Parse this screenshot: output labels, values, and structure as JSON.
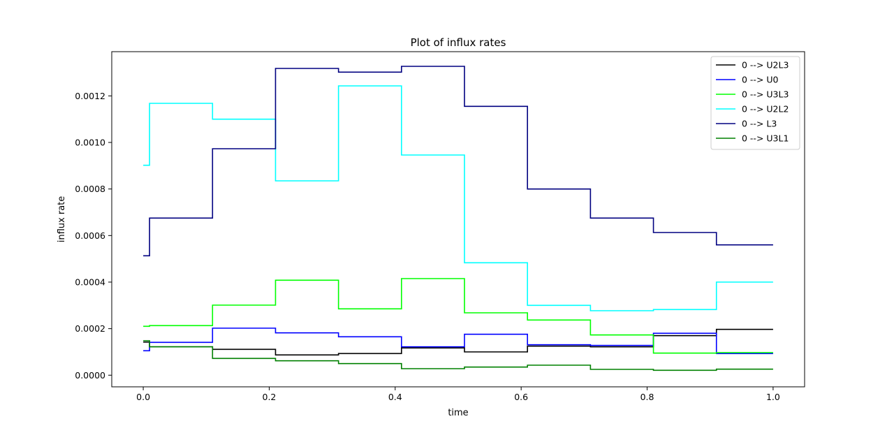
{
  "chart_data": {
    "type": "line",
    "step": "post",
    "title": "Plot of influx rates",
    "xlabel": "time",
    "ylabel": "influx rate",
    "xlim": [
      -0.05,
      1.05
    ],
    "ylim": [
      -5e-05,
      0.00139
    ],
    "xticks": [
      0.0,
      0.2,
      0.4,
      0.6,
      0.8,
      1.0
    ],
    "xtick_labels": [
      "0.0",
      "0.2",
      "0.4",
      "0.6",
      "0.8",
      "1.0"
    ],
    "yticks": [
      0.0,
      0.0002,
      0.0004,
      0.0006,
      0.0008,
      0.001,
      0.0012
    ],
    "ytick_labels": [
      "0.0000",
      "0.0002",
      "0.0004",
      "0.0006",
      "0.0008",
      "0.0010",
      "0.0012"
    ],
    "grid": false,
    "legend_position": "top-right",
    "x": [
      0.0,
      0.01,
      0.11,
      0.21,
      0.31,
      0.41,
      0.51,
      0.61,
      0.71,
      0.81,
      0.91,
      1.0
    ],
    "series": [
      {
        "name": "0 --> U2L3",
        "color": "#000000",
        "values": [
          0.000142,
          0.000122,
          0.000111,
          8.7e-05,
          9.3e-05,
          0.000117,
          0.0001,
          0.000125,
          0.000122,
          0.00017,
          0.000197,
          0.000197
        ]
      },
      {
        "name": "0 --> U0",
        "color": "#0000ff",
        "values": [
          0.000105,
          0.000141,
          0.000202,
          0.000182,
          0.000165,
          0.000122,
          0.000176,
          0.000131,
          0.000128,
          0.00018,
          9.3e-05,
          9.3e-05
        ]
      },
      {
        "name": "0 --> U3L3",
        "color": "#00ff00",
        "values": [
          0.00021,
          0.000213,
          0.000301,
          0.000408,
          0.000285,
          0.000415,
          0.000268,
          0.000237,
          0.000173,
          9.5e-05,
          9.7e-05,
          9.7e-05
        ]
      },
      {
        "name": "0 --> U2L2",
        "color": "#00ffff",
        "values": [
          0.000902,
          0.001168,
          0.0011,
          0.000835,
          0.001243,
          0.000946,
          0.000483,
          0.0003,
          0.000277,
          0.000282,
          0.0004,
          0.0004
        ]
      },
      {
        "name": "0 --> L3",
        "color": "#000080",
        "values": [
          0.000513,
          0.000675,
          0.000973,
          0.001318,
          0.001302,
          0.001327,
          0.001155,
          0.0008,
          0.000675,
          0.000613,
          0.00056,
          0.00056
        ]
      },
      {
        "name": "0 --> U3L1",
        "color": "#008000",
        "values": [
          0.000148,
          0.000122,
          7.2e-05,
          6.2e-05,
          5e-05,
          2.8e-05,
          3.5e-05,
          4.3e-05,
          2.5e-05,
          2.1e-05,
          2.6e-05,
          2.6e-05
        ]
      }
    ]
  }
}
